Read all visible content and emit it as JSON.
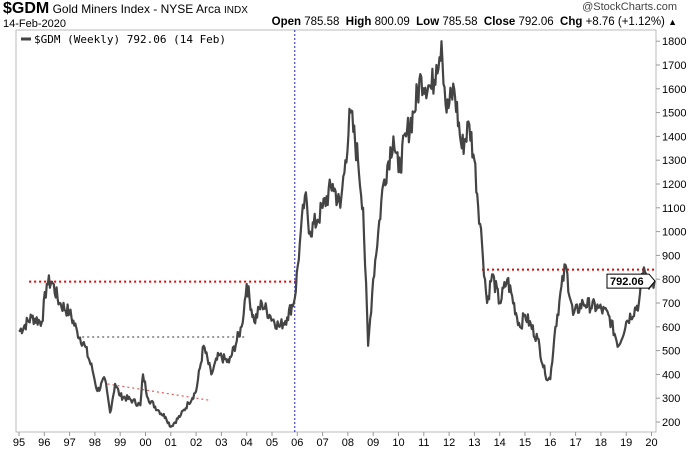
{
  "header": {
    "symbol": "$GDM",
    "name": "Gold Miners Index - NYSE Arca",
    "exchange": "INDX",
    "date": "14-Feb-2020",
    "copyright": "@StockCharts.com",
    "open_label": "Open",
    "open": "785.58",
    "high_label": "High",
    "high": "800.09",
    "low_label": "Low",
    "low": "785.58",
    "close_label": "Close",
    "close": "792.06",
    "chg_label": "Chg",
    "chg": "+8.76 (+1.12%)",
    "chg_arrow": "▲"
  },
  "chart_data": {
    "type": "line",
    "title": "$GDM Gold Miners Index - NYSE Arca INDX",
    "legend": "$GDM (Weekly) 792.06 (14 Feb)",
    "legend_placement": "top-left",
    "last_value_label": "792.06",
    "ylim": [
      150,
      1850
    ],
    "yticks": [
      200,
      300,
      400,
      500,
      600,
      700,
      800,
      900,
      1000,
      1100,
      1200,
      1300,
      1400,
      1500,
      1600,
      1700,
      1800
    ],
    "xlim": [
      1995,
      2020.4
    ],
    "xticks": [
      "95",
      "96",
      "97",
      "98",
      "99",
      "00",
      "01",
      "02",
      "03",
      "04",
      "05",
      "06",
      "07",
      "08",
      "09",
      "10",
      "11",
      "12",
      "13",
      "14",
      "15",
      "16",
      "17",
      "18",
      "19",
      "20"
    ],
    "series": [
      {
        "name": "$GDM (Weekly)",
        "color": "#444444",
        "points": [
          [
            1995.0,
            580
          ],
          [
            1995.5,
            640
          ],
          [
            1995.9,
            620
          ],
          [
            1996.1,
            780
          ],
          [
            1996.3,
            790
          ],
          [
            1996.6,
            700
          ],
          [
            1997.0,
            660
          ],
          [
            1997.3,
            580
          ],
          [
            1997.6,
            520
          ],
          [
            1997.9,
            420
          ],
          [
            1998.1,
            330
          ],
          [
            1998.4,
            380
          ],
          [
            1998.6,
            240
          ],
          [
            1998.8,
            360
          ],
          [
            1999.0,
            310
          ],
          [
            1999.5,
            290
          ],
          [
            1999.8,
            270
          ],
          [
            1999.9,
            400
          ],
          [
            2000.1,
            300
          ],
          [
            2000.5,
            250
          ],
          [
            2000.8,
            220
          ],
          [
            2001.0,
            180
          ],
          [
            2001.4,
            230
          ],
          [
            2001.7,
            280
          ],
          [
            2002.0,
            330
          ],
          [
            2002.3,
            520
          ],
          [
            2002.6,
            400
          ],
          [
            2002.9,
            480
          ],
          [
            2003.3,
            450
          ],
          [
            2003.8,
            600
          ],
          [
            2004.0,
            780
          ],
          [
            2004.3,
            620
          ],
          [
            2004.6,
            700
          ],
          [
            2004.9,
            650
          ],
          [
            2005.3,
            600
          ],
          [
            2005.6,
            640
          ],
          [
            2005.9,
            720
          ],
          [
            2006.1,
            950
          ],
          [
            2006.3,
            1150
          ],
          [
            2006.5,
            1000
          ],
          [
            2006.8,
            1050
          ],
          [
            2007.0,
            1100
          ],
          [
            2007.4,
            1200
          ],
          [
            2007.7,
            1100
          ],
          [
            2007.9,
            1300
          ],
          [
            2008.1,
            1500
          ],
          [
            2008.4,
            1300
          ],
          [
            2008.6,
            1100
          ],
          [
            2008.8,
            520
          ],
          [
            2009.0,
            800
          ],
          [
            2009.4,
            1200
          ],
          [
            2009.8,
            1400
          ],
          [
            2010.0,
            1250
          ],
          [
            2010.3,
            1400
          ],
          [
            2010.6,
            1500
          ],
          [
            2010.9,
            1650
          ],
          [
            2011.3,
            1600
          ],
          [
            2011.5,
            1700
          ],
          [
            2011.7,
            1800
          ],
          [
            2011.9,
            1500
          ],
          [
            2012.2,
            1600
          ],
          [
            2012.5,
            1350
          ],
          [
            2012.8,
            1450
          ],
          [
            2013.0,
            1300
          ],
          [
            2013.3,
            950
          ],
          [
            2013.5,
            700
          ],
          [
            2013.7,
            820
          ],
          [
            2014.0,
            700
          ],
          [
            2014.3,
            800
          ],
          [
            2014.8,
            600
          ],
          [
            2015.0,
            650
          ],
          [
            2015.5,
            550
          ],
          [
            2015.8,
            400
          ],
          [
            2016.0,
            380
          ],
          [
            2016.2,
            600
          ],
          [
            2016.6,
            860
          ],
          [
            2016.9,
            650
          ],
          [
            2017.3,
            700
          ],
          [
            2017.9,
            680
          ],
          [
            2018.3,
            650
          ],
          [
            2018.7,
            520
          ],
          [
            2019.0,
            620
          ],
          [
            2019.5,
            700
          ],
          [
            2019.7,
            850
          ],
          [
            2019.9,
            760
          ],
          [
            2020.0,
            800
          ],
          [
            2020.12,
            792
          ]
        ]
      }
    ],
    "annotations": [
      {
        "type": "hline",
        "style": "red-dotted",
        "value": 790,
        "x": [
          1995.4,
          2006.0
        ]
      },
      {
        "type": "hline",
        "style": "black-dotted",
        "value": 557,
        "x": [
          1997.3,
          2004.0
        ]
      },
      {
        "type": "trendline",
        "style": "red-dotted",
        "from": [
          1998.5,
          360
        ],
        "to": [
          2002.6,
          290
        ]
      },
      {
        "type": "hline",
        "style": "red-dotted",
        "value": 840,
        "x": [
          2013.3,
          2020.4
        ]
      },
      {
        "type": "vline",
        "style": "blue-dotted",
        "value": 2005.9
      }
    ]
  }
}
